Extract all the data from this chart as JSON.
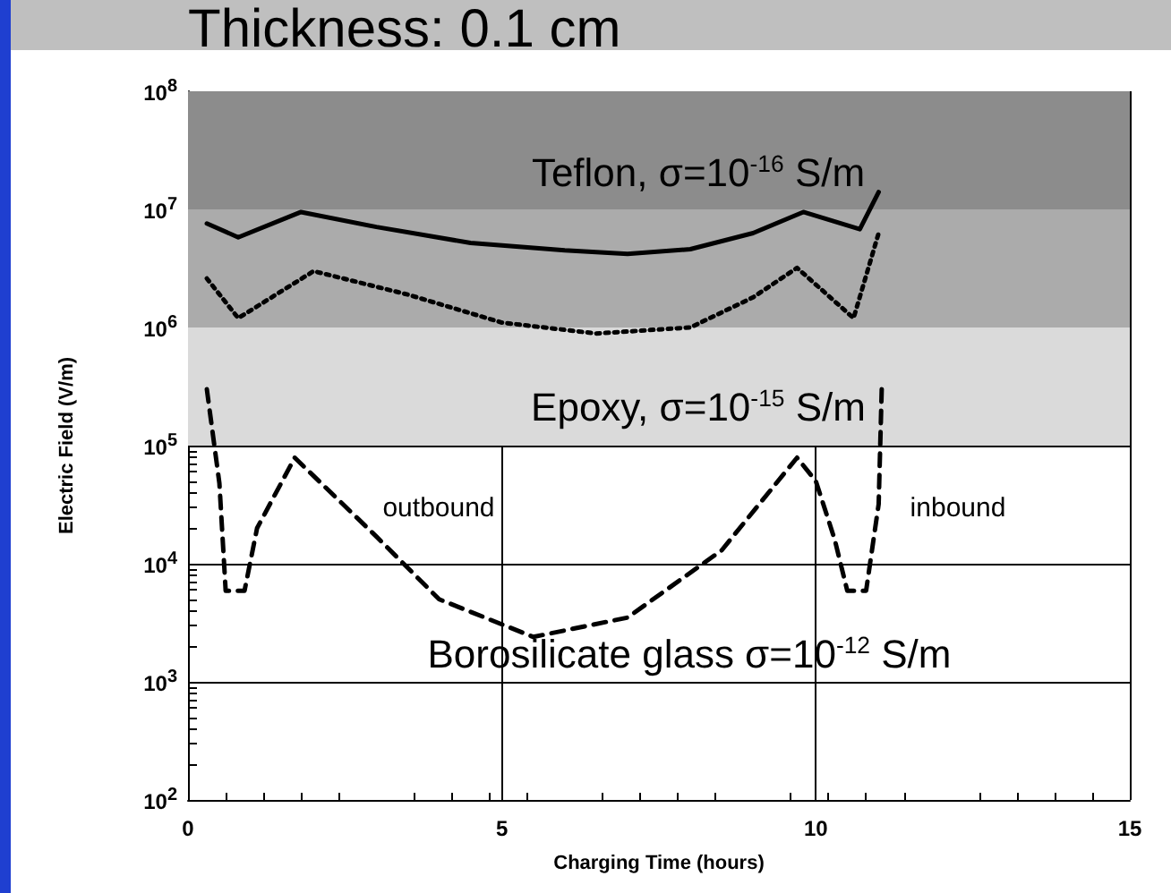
{
  "chart_data": {
    "type": "line",
    "title": "Thickness:  0.1 cm",
    "xlabel": "Charging Time (hours)",
    "ylabel": "Electric Field (V/m)",
    "series": [
      {
        "color": "#000000",
        "line_style": "solid",
        "x": [
          0.3,
          0.8,
          1.8,
          3,
          4.5,
          6,
          7,
          8,
          9,
          9.8,
          10.7,
          11.0
        ],
        "values": [
          7600000,
          5800000,
          9500000,
          7100000,
          5200000,
          4500000,
          4200000,
          4600000,
          6300000,
          9500000,
          6800000,
          14000000
        ]
      },
      {
        "color": "#000000",
        "line_style": "dotted",
        "x": [
          0.3,
          0.8,
          2.0,
          3.5,
          5,
          6.5,
          8,
          9,
          9.7,
          10.6,
          11.0
        ],
        "values": [
          2600000,
          1200000,
          3000000,
          1900000,
          1100000,
          890000,
          1000000,
          1800000,
          3200000,
          1200000,
          6300000
        ]
      },
      {
        "color": "#000000",
        "line_style": "dashed",
        "x": [
          0.3,
          0.5,
          0.6,
          0.9,
          1.1,
          1.7,
          3,
          4,
          5.5,
          7,
          8.5,
          9.7,
          10,
          10.3,
          10.5,
          10.8,
          11.0,
          11.05
        ],
        "values": [
          300000,
          48000,
          5900,
          5900,
          20000,
          79000,
          17000,
          5000,
          2400,
          3500,
          13000,
          79000,
          50000,
          16000,
          5900,
          5900,
          32000,
          320000
        ]
      }
    ],
    "bands": [
      {
        "axis": "y",
        "from": 10000000,
        "to": 100000000,
        "color": "#8c8c8c"
      },
      {
        "axis": "y",
        "from": 1000000,
        "to": 10000000,
        "color": "#ababab"
      },
      {
        "axis": "y",
        "from": 100000,
        "to": 1000000,
        "color": "#dadada"
      }
    ],
    "annotations": [
      "Teflon, σ=10$^{-16}$ S/m",
      "Epoxy, σ=10$^{-15}$ S/m",
      "outbound",
      "inbound",
      "Borosilicate glass σ=10$^{-12}$ S/m"
    ],
    "xlim": [
      0,
      15
    ],
    "xticks": [
      0,
      5,
      10,
      15
    ],
    "ylim": [
      100,
      100000000
    ],
    "yticks": [
      {
        "value": 100,
        "label": "10$^{2}$"
      },
      {
        "value": 1000,
        "label": "10$^{3}$"
      },
      {
        "value": 10000,
        "label": "10$^{4}$"
      },
      {
        "value": 100000,
        "label": "10$^{5}$"
      },
      {
        "value": 1000000,
        "label": "10$^{6}$"
      },
      {
        "value": 10000000,
        "label": "10$^{7}$"
      },
      {
        "value": 100000000,
        "label": "10$^{8}$"
      }
    ],
    "log": "y",
    "grid": true,
    "marker": "none"
  }
}
